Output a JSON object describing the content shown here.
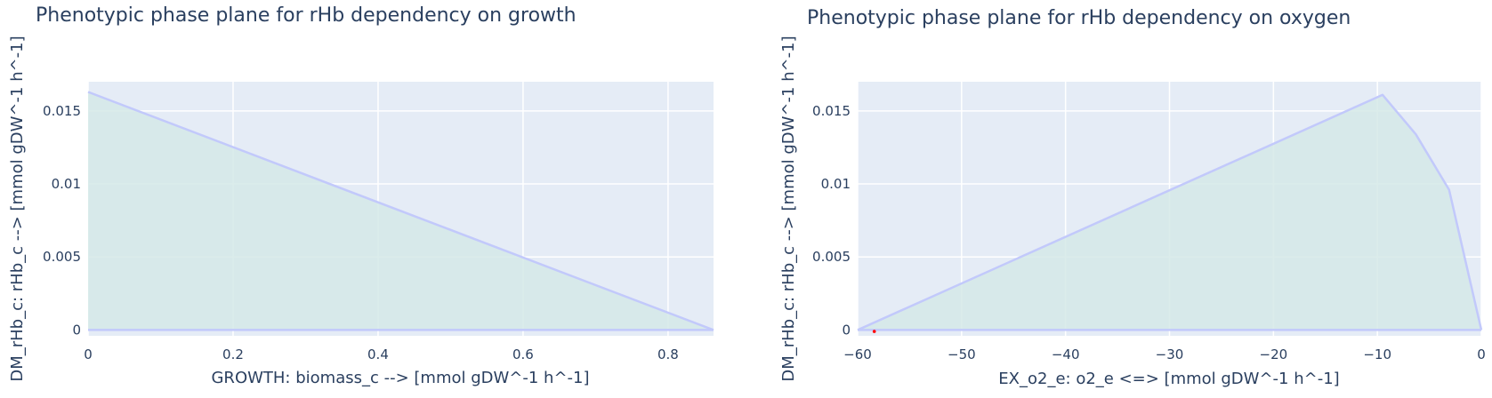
{
  "chart_data": [
    {
      "type": "area",
      "title": "Phenotypic phase plane for rHb dependency on growth",
      "xlabel": "GROWTH: biomass_c -->  [mmol gDW^-1 h^-1]",
      "ylabel": "DM_rHb_c: rHb_c -->  [mmol gDW^-1 h^-1]",
      "xlim": [
        0,
        0.8627
      ],
      "ylim": [
        -0.0004,
        0.017
      ],
      "xticks": [
        0,
        0.2,
        0.4,
        0.6,
        0.8
      ],
      "xtick_labels": [
        "0",
        "0.2",
        "0.4",
        "0.6",
        "0.8"
      ],
      "yticks": [
        0,
        0.005,
        0.01,
        0.015
      ],
      "ytick_labels": [
        "0",
        "0.005",
        "0.01",
        "0.015"
      ],
      "grid": true,
      "series": [
        {
          "role": "upper",
          "x": [
            0,
            0.8627
          ],
          "y": [
            0.0163,
            0
          ]
        },
        {
          "role": "lower",
          "x": [
            0,
            0.8627
          ],
          "y": [
            0,
            0
          ]
        }
      ],
      "points": [],
      "colors": {
        "line": "#c2c9fb",
        "fill": "#d5e9e8",
        "plot_bg": "#e5ecf6",
        "grid": "#ffffff",
        "point": "#ff0000"
      }
    },
    {
      "type": "area",
      "title": "Phenotypic phase plane for rHb dependency on oxygen",
      "xlabel": "EX_o2_e: o2_e <=>  [mmol gDW^-1 h^-1]",
      "ylabel": "DM_rHb_c: rHb_c -->  [mmol gDW^-1 h^-1]",
      "xlim": [
        -60,
        0
      ],
      "ylim": [
        -0.0004,
        0.017
      ],
      "xticks": [
        -60,
        -50,
        -40,
        -30,
        -20,
        -10,
        0
      ],
      "xtick_labels": [
        "−60",
        "−50",
        "−40",
        "−30",
        "−20",
        "−10",
        "0"
      ],
      "yticks": [
        0,
        0.005,
        0.01,
        0.015
      ],
      "ytick_labels": [
        "0",
        "0.005",
        "0.01",
        "0.015"
      ],
      "grid": true,
      "series": [
        {
          "role": "upper",
          "x": [
            -60,
            -9.5,
            -6.3,
            -3.1,
            0
          ],
          "y": [
            0,
            0.0161,
            0.0134,
            0.0096,
            0
          ]
        },
        {
          "role": "lower",
          "x": [
            -60,
            0
          ],
          "y": [
            0,
            0
          ]
        }
      ],
      "points": [
        {
          "x": -58.4,
          "y": -0.0001
        }
      ],
      "colors": {
        "line": "#c2c9fb",
        "fill": "#d5e9e8",
        "plot_bg": "#e5ecf6",
        "grid": "#ffffff",
        "point": "#ff0000"
      }
    }
  ]
}
